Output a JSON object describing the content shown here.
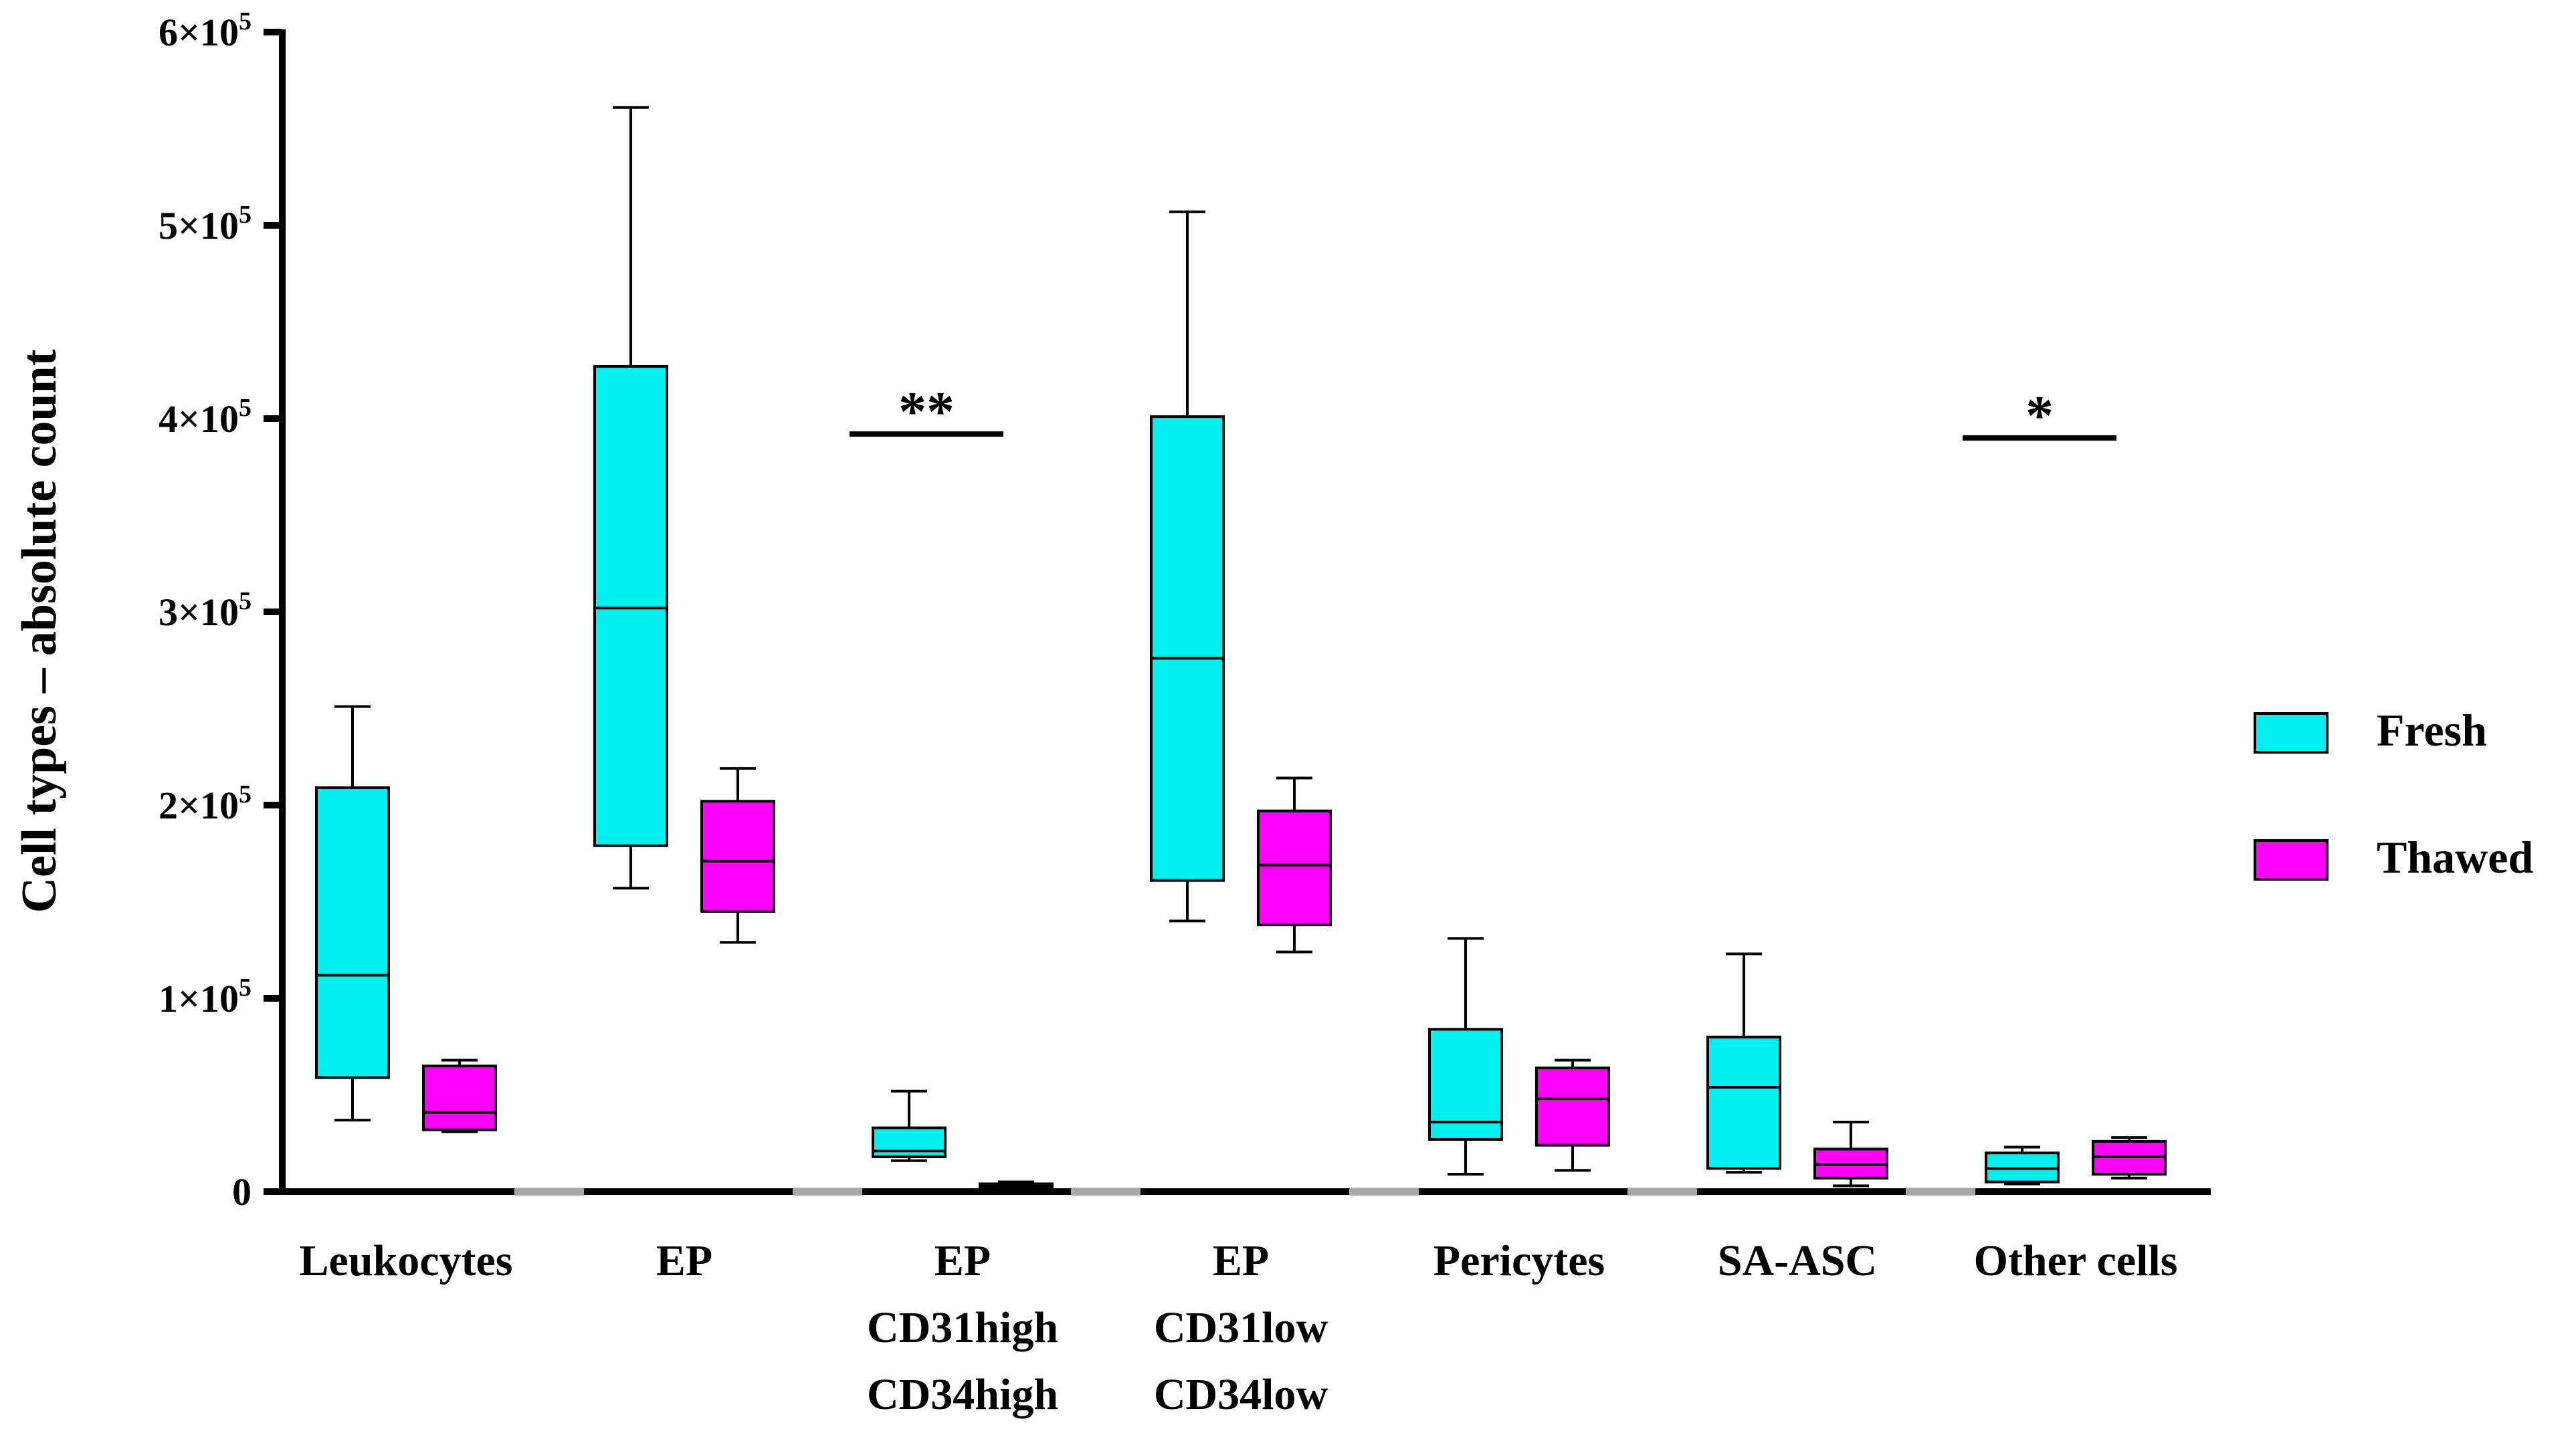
{
  "chart_data": {
    "type": "box",
    "title": "",
    "xlabel": "",
    "ylabel": "Cell types – absolute count",
    "ylim": [
      0,
      600000
    ],
    "y_ticks": [
      {
        "value": 0,
        "base": "0",
        "exp": ""
      },
      {
        "value": 100000,
        "base": "1×10",
        "exp": "5"
      },
      {
        "value": 200000,
        "base": "2×10",
        "exp": "5"
      },
      {
        "value": 300000,
        "base": "3×10",
        "exp": "5"
      },
      {
        "value": 400000,
        "base": "4×10",
        "exp": "5"
      },
      {
        "value": 500000,
        "base": "5×10",
        "exp": "5"
      },
      {
        "value": 600000,
        "base": "6×10",
        "exp": "5"
      }
    ],
    "categories": [
      {
        "label_lines": [
          "Leukocytes"
        ]
      },
      {
        "label_lines": [
          "EP"
        ]
      },
      {
        "label_lines": [
          "EP",
          "CD31high",
          "CD34high"
        ]
      },
      {
        "label_lines": [
          "EP",
          "CD31low",
          "CD34low"
        ]
      },
      {
        "label_lines": [
          "Pericytes"
        ]
      },
      {
        "label_lines": [
          "SA-ASC"
        ]
      },
      {
        "label_lines": [
          "Other cells"
        ]
      }
    ],
    "series": [
      {
        "name": "Fresh",
        "color": "#00F0F0",
        "boxes": [
          {
            "min": 37000,
            "q1": 59000,
            "median": 112000,
            "q3": 209000,
            "max": 251000
          },
          {
            "min": 157000,
            "q1": 179000,
            "median": 302000,
            "q3": 427000,
            "max": 561000
          },
          {
            "min": 16000,
            "q1": 18000,
            "median": 21000,
            "q3": 33000,
            "max": 52000
          },
          {
            "min": 140000,
            "q1": 161000,
            "median": 276000,
            "q3": 401000,
            "max": 507000
          },
          {
            "min": 9000,
            "q1": 27000,
            "median": 36000,
            "q3": 84000,
            "max": 131000
          },
          {
            "min": 10000,
            "q1": 12000,
            "median": 54000,
            "q3": 80000,
            "max": 123000
          },
          {
            "min": 4000,
            "q1": 5000,
            "median": 12000,
            "q3": 20000,
            "max": 23000
          }
        ]
      },
      {
        "name": "Thawed",
        "color": "#FF00FF",
        "boxes": [
          {
            "min": 31000,
            "q1": 32000,
            "median": 41000,
            "q3": 65000,
            "max": 68000
          },
          {
            "min": 129000,
            "q1": 145000,
            "median": 171000,
            "q3": 202000,
            "max": 219000
          },
          {
            "min": 1000,
            "q1": 2000,
            "median": 3000,
            "q3": 4000,
            "max": 5000
          },
          {
            "min": 124000,
            "q1": 138000,
            "median": 169000,
            "q3": 197000,
            "max": 214000
          },
          {
            "min": 11000,
            "q1": 24000,
            "median": 48000,
            "q3": 64000,
            "max": 68000
          },
          {
            "min": 3000,
            "q1": 7000,
            "median": 14000,
            "q3": 22000,
            "max": 36000
          },
          {
            "min": 7000,
            "q1": 9000,
            "median": 18000,
            "q3": 26000,
            "max": 28000
          }
        ]
      }
    ],
    "annotations": [
      {
        "text": "**",
        "category_index": 2,
        "y": 392000
      },
      {
        "text": "*",
        "category_index": 6,
        "y": 390000
      }
    ],
    "legend": {
      "position": "right",
      "entries": [
        "Fresh",
        "Thawed"
      ]
    }
  }
}
